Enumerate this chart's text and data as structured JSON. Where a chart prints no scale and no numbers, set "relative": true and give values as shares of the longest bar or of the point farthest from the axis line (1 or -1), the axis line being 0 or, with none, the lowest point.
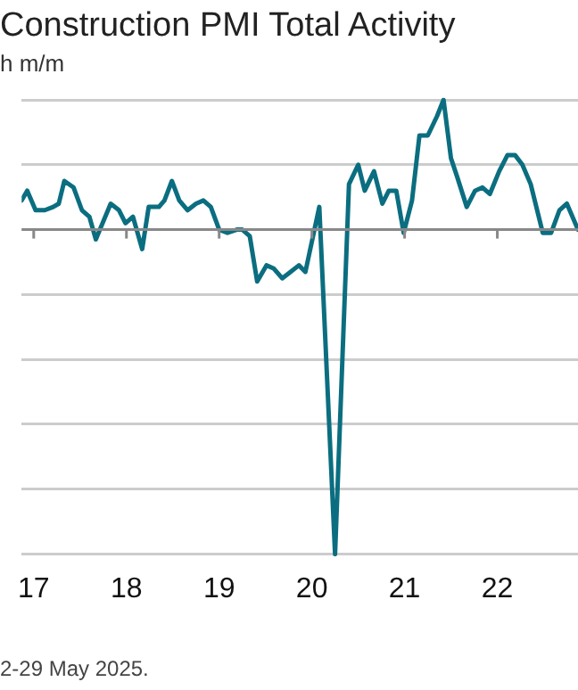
{
  "chart_data": {
    "type": "line",
    "title": "Construction PMI Total Activity",
    "subtitle": "h m/m",
    "annotations": [
      "2-29 May 2025."
    ],
    "relative": true,
    "grid": "y",
    "legend": false,
    "marker": "none",
    "line_style": "solid",
    "xlim": [
      2016.87,
      2022.87
    ],
    "xticks": [
      {
        "value": 2017,
        "label": "17"
      },
      {
        "value": 2018,
        "label": "18"
      },
      {
        "value": 2019,
        "label": "19"
      },
      {
        "value": 2020,
        "label": "20"
      },
      {
        "value": 2021,
        "label": "21"
      },
      {
        "value": 2022,
        "label": "22"
      }
    ],
    "series": [
      {
        "color": "#0b6e80",
        "x": [
          2016.87,
          2016.93,
          2017.02,
          2017.12,
          2017.21,
          2017.27,
          2017.33,
          2017.43,
          2017.52,
          2017.6,
          2017.67,
          2017.83,
          2017.92,
          2017.99,
          2018.07,
          2018.17,
          2018.24,
          2018.35,
          2018.41,
          2018.49,
          2018.57,
          2018.66,
          2018.75,
          2018.83,
          2018.91,
          2019.0,
          2019.09,
          2019.19,
          2019.25,
          2019.33,
          2019.41,
          2019.51,
          2019.59,
          2019.68,
          2019.77,
          2019.86,
          2019.93,
          2020.08,
          2020.25,
          2020.4,
          2020.5,
          2020.57,
          2020.67,
          2020.76,
          2020.83,
          2020.91,
          2020.99,
          2021.08,
          2021.16,
          2021.25,
          2021.35,
          2021.42,
          2021.5,
          2021.57,
          2021.67,
          2021.76,
          2021.84,
          2021.92,
          2022.02,
          2022.11,
          2022.19,
          2022.27,
          2022.36,
          2022.49,
          2022.58,
          2022.67,
          2022.75,
          2022.87
        ],
        "values": [
          0.09,
          0.12,
          0.06,
          0.06,
          0.07,
          0.08,
          0.15,
          0.13,
          0.06,
          0.04,
          -0.03,
          0.08,
          0.06,
          0.02,
          0.04,
          -0.06,
          0.07,
          0.07,
          0.09,
          0.15,
          0.09,
          0.06,
          0.08,
          0.09,
          0.07,
          0.0,
          -0.01,
          0.0,
          0.0,
          -0.02,
          -0.16,
          -0.11,
          -0.12,
          -0.15,
          -0.13,
          -0.11,
          -0.13,
          0.07,
          -1,
          0.14,
          0.2,
          0.12,
          0.18,
          0.08,
          0.12,
          0.12,
          -0.01,
          0.09,
          0.29,
          0.29,
          0.35,
          0.4,
          0.22,
          0.16,
          0.07,
          0.12,
          0.13,
          0.11,
          0.18,
          0.23,
          0.23,
          0.2,
          0.14,
          -0.01,
          -0.01,
          0.06,
          0.08,
          0.0
        ]
      }
    ]
  }
}
